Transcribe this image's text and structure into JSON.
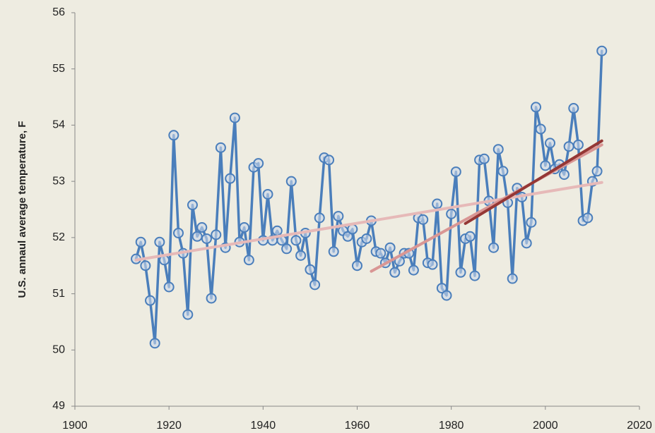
{
  "chart_data": {
    "type": "line",
    "y_label": "U.S. annaul average temperature, F",
    "xlim": [
      1900,
      2020
    ],
    "xticks": [
      1900,
      1920,
      1940,
      1960,
      1980,
      2000,
      2020
    ],
    "ylim": [
      49,
      56
    ],
    "yticks": [
      49,
      50,
      51,
      52,
      53,
      54,
      55,
      56
    ],
    "grid": false,
    "series": [
      {
        "color": "#4a7ebb",
        "markers": true,
        "x": [
          1913,
          1914,
          1915,
          1916,
          1917,
          1918,
          1919,
          1920,
          1921,
          1922,
          1923,
          1924,
          1925,
          1926,
          1927,
          1928,
          1929,
          1930,
          1931,
          1932,
          1933,
          1934,
          1935,
          1936,
          1937,
          1938,
          1939,
          1940,
          1941,
          1942,
          1943,
          1944,
          1945,
          1946,
          1947,
          1948,
          1949,
          1950,
          1951,
          1952,
          1953,
          1954,
          1955,
          1956,
          1957,
          1958,
          1959,
          1960,
          1961,
          1962,
          1963,
          1964,
          1965,
          1966,
          1967,
          1968,
          1969,
          1970,
          1971,
          1972,
          1973,
          1974,
          1975,
          1976,
          1977,
          1978,
          1979,
          1980,
          1981,
          1982,
          1983,
          1984,
          1985,
          1986,
          1987,
          1988,
          1989,
          1990,
          1991,
          1992,
          1993,
          1994,
          1995,
          1996,
          1997,
          1998,
          1999,
          2000,
          2001,
          2002,
          2003,
          2004,
          2005,
          2006,
          2007,
          2008,
          2009,
          2010,
          2011,
          2012
        ],
        "values": [
          51.62,
          51.92,
          51.5,
          50.88,
          50.12,
          51.92,
          51.6,
          51.12,
          53.82,
          52.08,
          51.72,
          50.63,
          52.58,
          52.02,
          52.18,
          51.98,
          50.92,
          52.05,
          53.6,
          51.82,
          53.05,
          54.13,
          51.92,
          52.18,
          51.6,
          53.25,
          53.32,
          51.95,
          52.77,
          51.95,
          52.12,
          51.95,
          51.8,
          53.0,
          51.95,
          51.68,
          52.08,
          51.43,
          51.16,
          52.35,
          53.42,
          53.38,
          51.75,
          52.38,
          52.12,
          52.02,
          52.15,
          51.5,
          51.92,
          51.98,
          52.3,
          51.75,
          51.72,
          51.55,
          51.82,
          51.38,
          51.58,
          51.72,
          51.72,
          51.42,
          52.35,
          52.32,
          51.55,
          51.52,
          52.6,
          51.1,
          50.97,
          52.42,
          53.17,
          51.38,
          51.98,
          52.02,
          51.32,
          53.38,
          53.4,
          52.65,
          51.82,
          53.57,
          53.18,
          52.62,
          51.27,
          52.88,
          52.72,
          51.9,
          52.27,
          54.32,
          53.93,
          53.28,
          53.68,
          53.22,
          53.3,
          53.12,
          53.62,
          54.3,
          53.65,
          52.3,
          52.35,
          53.0,
          53.18,
          55.32
        ]
      },
      {
        "color": "#e6b9b8",
        "markers": false,
        "x": [
          1913,
          2012
        ],
        "values": [
          51.6,
          52.98
        ]
      },
      {
        "color": "#d99694",
        "markers": false,
        "x": [
          1963,
          2012
        ],
        "values": [
          51.4,
          53.65
        ]
      },
      {
        "color": "#953735",
        "markers": false,
        "x": [
          1983,
          2012
        ],
        "values": [
          52.25,
          53.72
        ]
      }
    ]
  }
}
